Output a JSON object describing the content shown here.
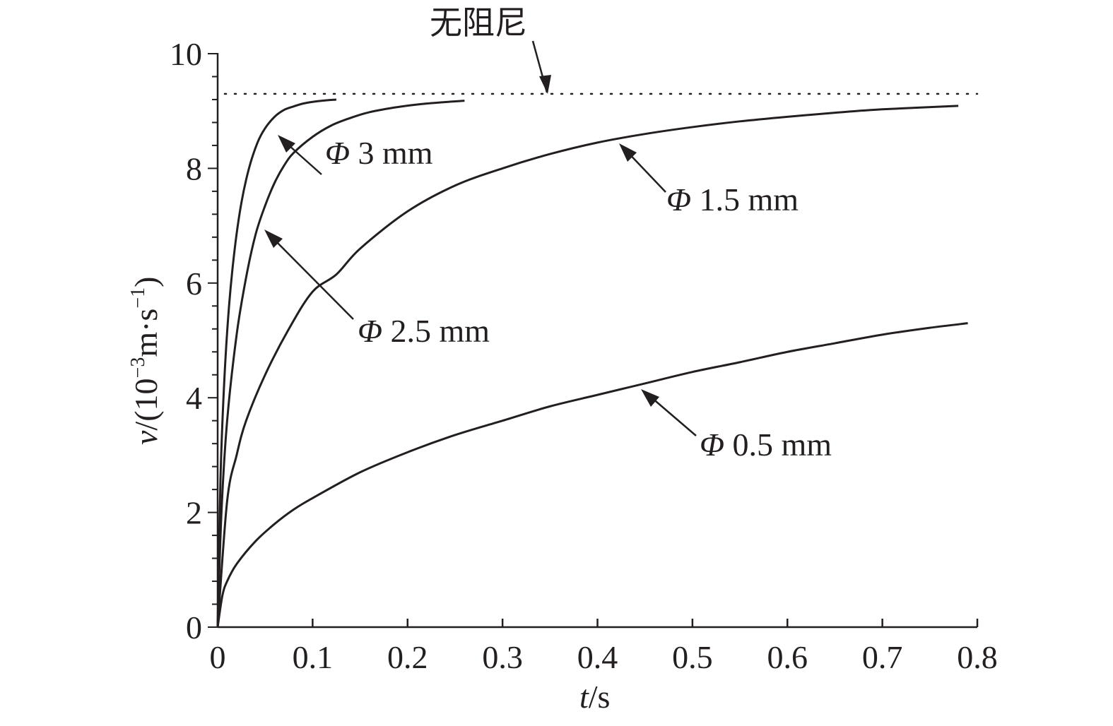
{
  "chart_data": {
    "type": "line",
    "xlabel": {
      "var": "t",
      "unit": "/s"
    },
    "ylabel": {
      "var": "v",
      "prefix": "/(10",
      "exp": "−3",
      "mid": "m·s",
      "exp2": "−1",
      "suffix": ")"
    },
    "xlim": [
      0,
      0.8
    ],
    "ylim": [
      0,
      10
    ],
    "xticks": [
      "0",
      "0.1",
      "0.2",
      "0.3",
      "0.4",
      "0.5",
      "0.6",
      "0.7",
      "0.8"
    ],
    "xtick_values": [
      0,
      0.1,
      0.2,
      0.3,
      0.4,
      0.5,
      0.6,
      0.7,
      0.8
    ],
    "yticks": [
      "0",
      "2",
      "4",
      "6",
      "8",
      "10"
    ],
    "ytick_values": [
      0,
      2,
      4,
      6,
      8,
      10
    ],
    "grid": false,
    "series": [
      {
        "label_prefix": "Φ",
        "label_text": " 3 mm",
        "x": [
          0,
          0.003,
          0.007,
          0.012,
          0.018,
          0.025,
          0.033,
          0.042,
          0.05,
          0.06,
          0.07,
          0.08,
          0.09,
          0.1,
          0.11,
          0.125
        ],
        "y": [
          0,
          2.6,
          4.3,
          5.6,
          6.6,
          7.4,
          8.0,
          8.45,
          8.7,
          8.9,
          9.02,
          9.08,
          9.13,
          9.16,
          9.18,
          9.2
        ]
      },
      {
        "label_prefix": "Φ",
        "label_text": " 2.5 mm",
        "x": [
          0,
          0.004,
          0.01,
          0.02,
          0.03,
          0.04,
          0.05,
          0.06,
          0.07,
          0.08,
          0.1,
          0.12,
          0.14,
          0.16,
          0.19,
          0.22,
          0.26
        ],
        "y": [
          0,
          2.0,
          3.6,
          5.1,
          6.1,
          6.85,
          7.35,
          7.75,
          8.05,
          8.27,
          8.55,
          8.75,
          8.88,
          8.98,
          9.07,
          9.13,
          9.18
        ]
      },
      {
        "label_prefix": "Φ",
        "label_text": " 1.5 mm",
        "x": [
          0,
          0.01,
          0.02,
          0.03,
          0.05,
          0.075,
          0.1,
          0.125,
          0.15,
          0.2,
          0.25,
          0.3,
          0.35,
          0.4,
          0.45,
          0.5,
          0.55,
          0.6,
          0.65,
          0.7,
          0.78
        ],
        "y": [
          0,
          2.2,
          3.0,
          3.6,
          4.4,
          5.2,
          5.85,
          6.15,
          6.6,
          7.25,
          7.7,
          8.0,
          8.25,
          8.45,
          8.6,
          8.72,
          8.82,
          8.9,
          8.97,
          9.03,
          9.09
        ]
      },
      {
        "label_prefix": "Φ",
        "label_text": " 0.5 mm",
        "x": [
          0,
          0.005,
          0.01,
          0.02,
          0.04,
          0.06,
          0.08,
          0.1,
          0.15,
          0.2,
          0.25,
          0.3,
          0.35,
          0.4,
          0.45,
          0.5,
          0.55,
          0.6,
          0.65,
          0.7,
          0.75,
          0.79
        ],
        "y": [
          0,
          0.55,
          0.8,
          1.1,
          1.5,
          1.8,
          2.05,
          2.25,
          2.7,
          3.05,
          3.35,
          3.6,
          3.85,
          4.05,
          4.25,
          4.45,
          4.62,
          4.8,
          4.95,
          5.1,
          5.22,
          5.3
        ]
      }
    ],
    "reference_line": {
      "label": "无阻尼",
      "y": 9.3,
      "style": "dotted"
    }
  }
}
